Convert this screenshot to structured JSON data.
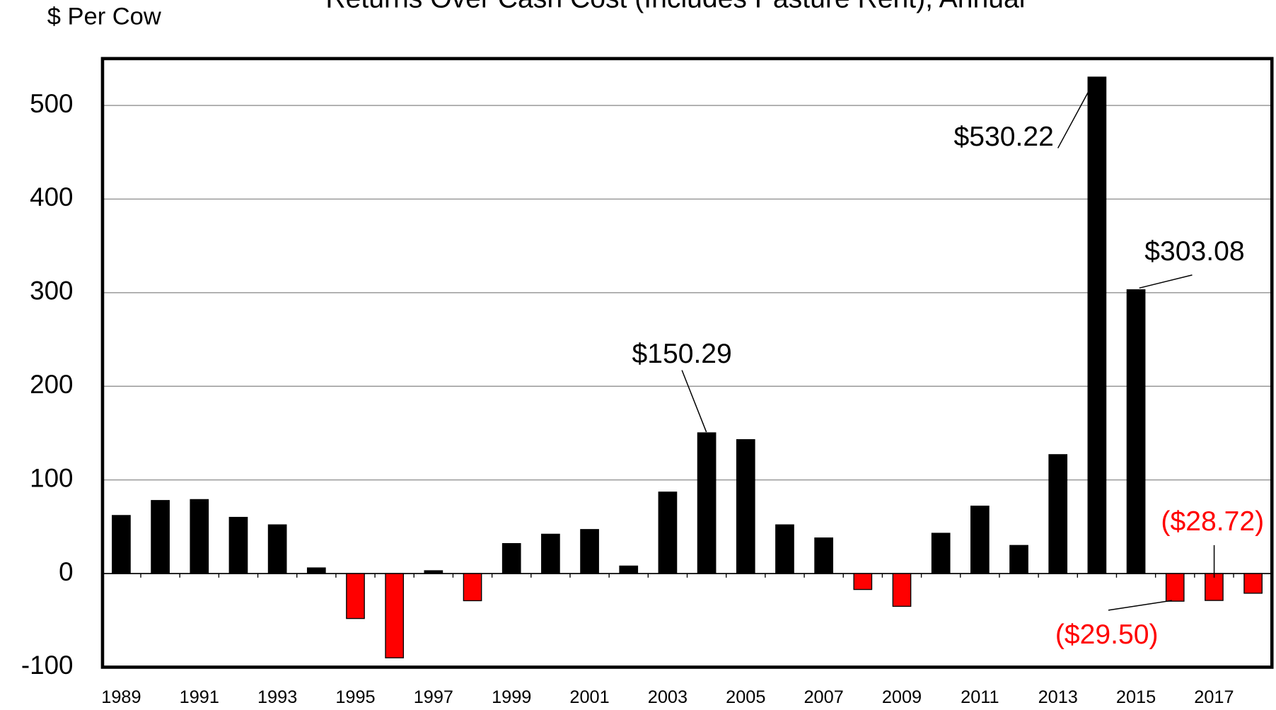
{
  "chart_data": {
    "type": "bar",
    "title": "Returns Over Cash Cost (Includes Pasture Rent), Annual",
    "y_label": "$ Per Cow",
    "categories": [
      "1989",
      null,
      "1991",
      null,
      "1993",
      null,
      "1995",
      null,
      "1997",
      null,
      "1999",
      null,
      "2001",
      null,
      "2003",
      null,
      "2005",
      null,
      "2007",
      null,
      "2009",
      null,
      "2011",
      null,
      "2013",
      null,
      "2015",
      null,
      "2017",
      null
    ],
    "values": [
      62,
      78,
      79,
      60,
      52,
      6,
      -48,
      -90,
      3,
      -29,
      32,
      42,
      47,
      8,
      87,
      150.29,
      143,
      52,
      38,
      -17,
      -35,
      43,
      72,
      30,
      127,
      530.22,
      303.08,
      -29.5,
      -28.72,
      -21
    ],
    "value_labels": [
      null,
      null,
      null,
      null,
      null,
      null,
      null,
      null,
      null,
      null,
      null,
      null,
      null,
      null,
      null,
      "$150.29",
      null,
      null,
      null,
      null,
      null,
      null,
      null,
      null,
      null,
      "$530.22",
      "$303.08",
      "($29.50)",
      "($28.72)",
      null
    ],
    "positive_color": "#000000",
    "negative_color": "#ff0000",
    "ylim": [
      -100,
      550
    ],
    "yticks": [
      -100,
      0,
      100,
      200,
      300,
      400,
      500
    ],
    "grid": true
  }
}
